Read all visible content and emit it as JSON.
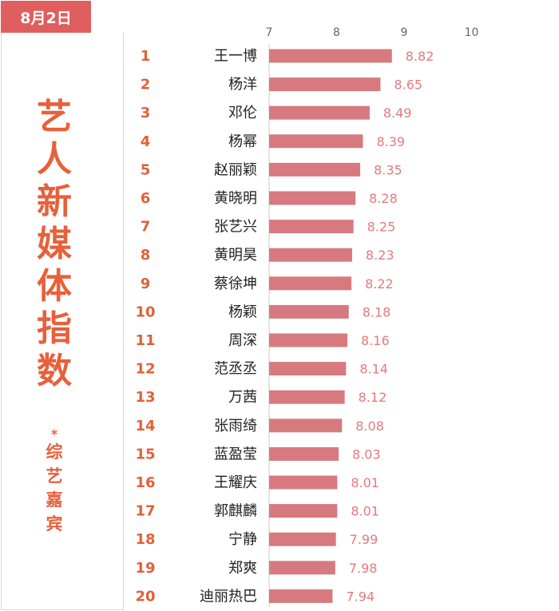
{
  "header": {
    "date": "8月2日",
    "title_chars": [
      "艺",
      "人",
      "新",
      "媒",
      "体",
      "指",
      "数"
    ],
    "subtitle_mark": "*",
    "subtitle_chars": [
      "综",
      "艺",
      "嘉",
      "宾"
    ]
  },
  "colors": {
    "bar": "#d77a7f",
    "value_label": "#e47a7e",
    "rank": "#e36037",
    "accent": "#e05e5e",
    "name": "#222222",
    "axis": "#666666"
  },
  "chart_data": {
    "type": "bar",
    "orientation": "horizontal",
    "xlim": [
      7,
      10
    ],
    "ticks": [
      7,
      8,
      9,
      10
    ],
    "grid": false,
    "ranks": [
      "1",
      "2",
      "3",
      "4",
      "5",
      "6",
      "7",
      "8",
      "9",
      "10",
      "11",
      "12",
      "13",
      "14",
      "15",
      "16",
      "17",
      "18",
      "19",
      "20"
    ],
    "categories": [
      "王一博",
      "杨洋",
      "邓伦",
      "杨幂",
      "赵丽颖",
      "黄晓明",
      "张艺兴",
      "黄明昊",
      "蔡徐坤",
      "杨颖",
      "周深",
      "范丞丞",
      "万茜",
      "张雨绮",
      "蓝盈莹",
      "王耀庆",
      "郭麒麟",
      "宁静",
      "郑爽",
      "迪丽热巴"
    ],
    "values": [
      8.82,
      8.65,
      8.49,
      8.39,
      8.35,
      8.28,
      8.25,
      8.23,
      8.22,
      8.18,
      8.16,
      8.14,
      8.12,
      8.08,
      8.03,
      8.01,
      8.01,
      7.99,
      7.98,
      7.94
    ],
    "value_labels": [
      "8.82",
      "8.65",
      "8.49",
      "8.39",
      "8.35",
      "8.28",
      "8.25",
      "8.23",
      "8.22",
      "8.18",
      "8.16",
      "8.14",
      "8.12",
      "8.08",
      "8.03",
      "8.01",
      "8.01",
      "7.99",
      "7.98",
      "7.94"
    ]
  }
}
